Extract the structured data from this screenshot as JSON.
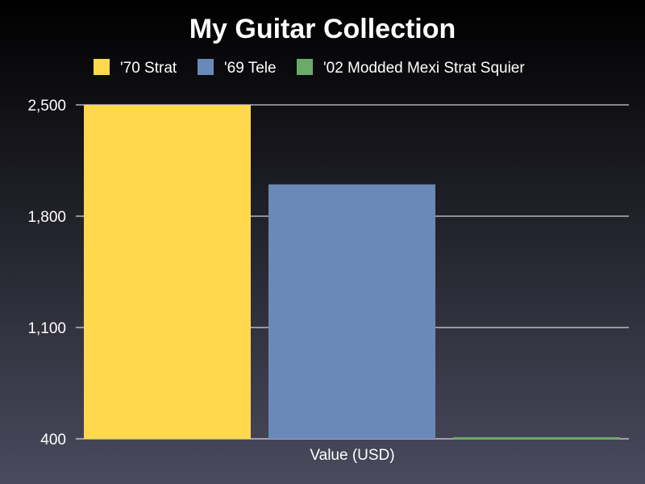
{
  "chart_data": {
    "type": "bar",
    "title": "My Guitar Collection",
    "xlabel": "Value (USD)",
    "ylabel": "",
    "categories": [
      "Value (USD)"
    ],
    "series": [
      {
        "name": "'70 Strat",
        "values": [
          2500
        ],
        "color": "#FFD84D"
      },
      {
        "name": "'69 Tele",
        "values": [
          2000
        ],
        "color": "#6A89B8"
      },
      {
        "name": "'02 Modded Mexi Strat Squier",
        "values": [
          400
        ],
        "color": "#6AAA6A"
      }
    ],
    "ylim": [
      400,
      2500
    ],
    "yticks": [
      400,
      1100,
      1800,
      2500
    ],
    "ytick_labels": [
      "400",
      "1,100",
      "1,800",
      "2,500"
    ],
    "grid": true,
    "legend_position": "top"
  }
}
